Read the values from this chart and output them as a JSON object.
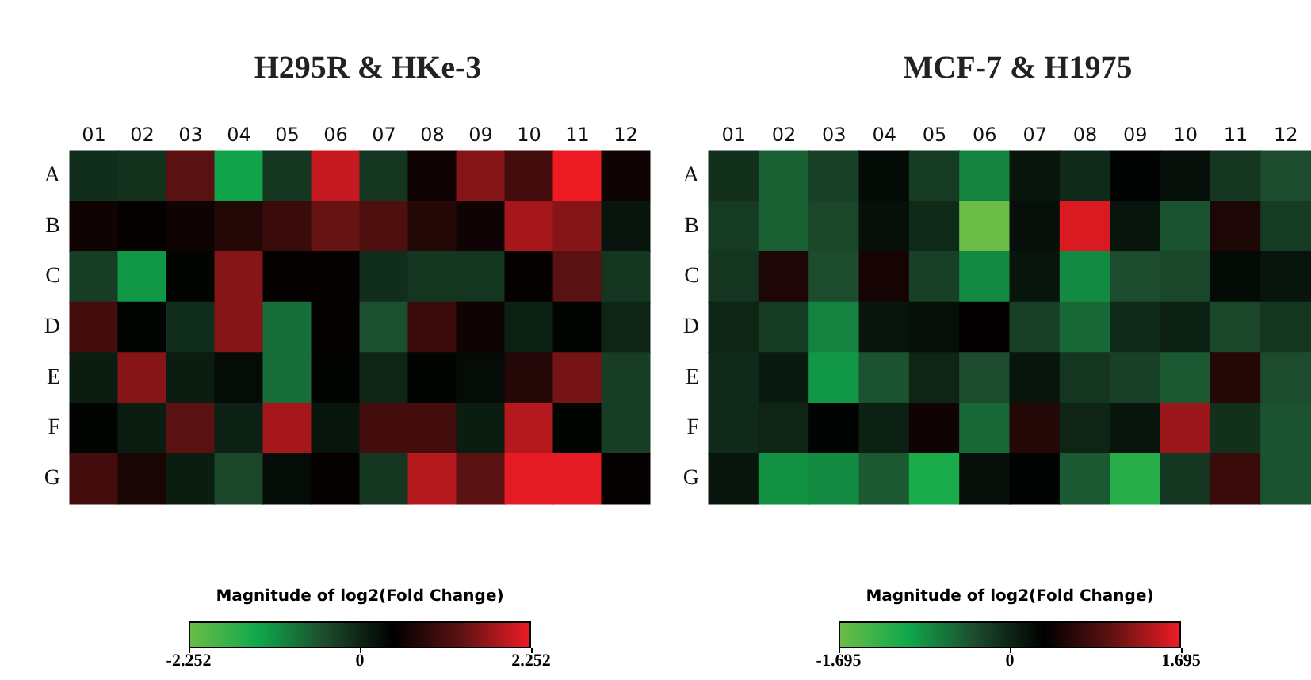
{
  "chart_data": [
    {
      "type": "heatmap",
      "title": "H295R & HKe-3",
      "clabel": "Magnitude of log2(Fold Change)",
      "categories": [
        "01",
        "02",
        "03",
        "04",
        "05",
        "06",
        "07",
        "08",
        "09",
        "10",
        "11",
        "12"
      ],
      "y_categories": [
        "A",
        "B",
        "C",
        "D",
        "E",
        "F",
        "G"
      ],
      "cells": [
        [
          -0.1,
          -0.15,
          1.3,
          -1.3,
          -0.2,
          2.0,
          -0.2,
          0.6,
          1.6,
          1.1,
          2.25,
          0.6
        ],
        [
          0.6,
          0.5,
          0.6,
          0.8,
          1.0,
          1.4,
          1.2,
          0.8,
          0.6,
          1.8,
          1.6,
          0.2
        ],
        [
          -0.3,
          -1.2,
          0.4,
          1.6,
          0.5,
          0.5,
          -0.1,
          -0.2,
          -0.2,
          0.5,
          1.3,
          -0.2
        ],
        [
          1.1,
          0.4,
          -0.1,
          1.6,
          -0.8,
          0.5,
          -0.5,
          1.0,
          0.6,
          0.05,
          0.4,
          0.0
        ],
        [
          0.1,
          1.6,
          0.1,
          0.3,
          -0.8,
          0.4,
          0.0,
          0.4,
          0.3,
          0.8,
          1.5,
          -0.3
        ],
        [
          0.4,
          0.1,
          1.3,
          0.05,
          1.8,
          0.2,
          1.1,
          1.1,
          0.1,
          1.9,
          0.4,
          -0.3
        ],
        [
          1.1,
          0.7,
          0.1,
          -0.4,
          0.3,
          0.5,
          -0.2,
          1.9,
          1.3,
          2.2,
          2.2,
          0.5
        ]
      ],
      "clim": [
        -2.252,
        2.252
      ],
      "cticks": [
        -2.252,
        0,
        2.252
      ]
    },
    {
      "type": "heatmap",
      "title": "MCF-7 & H1975",
      "clabel": "Magnitude of log2(Fold Change)",
      "categories": [
        "01",
        "02",
        "03",
        "04",
        "05",
        "06",
        "07",
        "08",
        "09",
        "10",
        "11",
        "12"
      ],
      "y_categories": [
        "A",
        "B",
        "C",
        "D",
        "E",
        "F",
        "G"
      ],
      "cells": [
        [
          -0.1,
          -0.5,
          -0.25,
          0.25,
          -0.2,
          -0.75,
          0.15,
          -0.05,
          0.3,
          0.2,
          -0.15,
          -0.35
        ],
        [
          -0.2,
          -0.5,
          -0.3,
          0.2,
          -0.05,
          -1.695,
          0.2,
          1.6,
          0.15,
          -0.4,
          0.55,
          -0.2
        ],
        [
          -0.15,
          0.55,
          -0.35,
          0.5,
          -0.25,
          -0.8,
          0.15,
          -0.8,
          -0.35,
          -0.3,
          0.25,
          0.15
        ],
        [
          0.0,
          -0.2,
          -0.75,
          0.15,
          0.2,
          0.35,
          -0.25,
          -0.55,
          -0.05,
          0.05,
          -0.3,
          -0.15
        ],
        [
          -0.05,
          0.1,
          -0.9,
          -0.4,
          0.0,
          -0.35,
          0.15,
          -0.15,
          -0.25,
          -0.45,
          0.6,
          -0.35
        ],
        [
          -0.05,
          0.0,
          0.3,
          0.05,
          0.45,
          -0.55,
          0.6,
          0.0,
          0.15,
          1.3,
          -0.1,
          -0.4
        ],
        [
          0.15,
          -0.85,
          -0.8,
          -0.45,
          -1.1,
          0.2,
          0.3,
          -0.45,
          -1.2,
          -0.15,
          0.75,
          -0.4
        ]
      ],
      "clim": [
        -1.695,
        1.695
      ],
      "cticks": [
        -1.695,
        0,
        1.695
      ]
    }
  ]
}
